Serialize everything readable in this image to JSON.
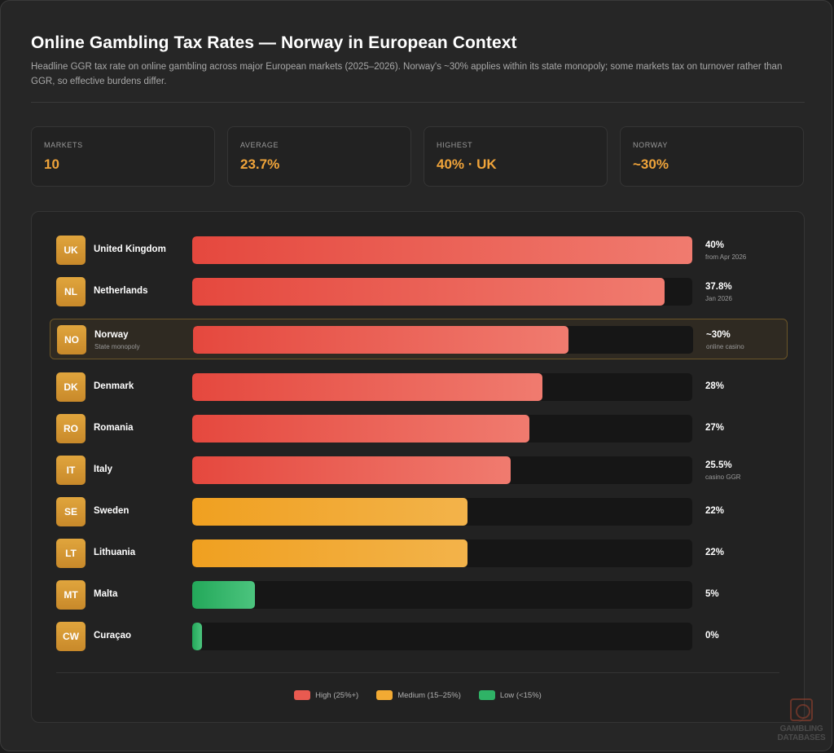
{
  "header": {
    "title": "Online Gambling Tax Rates — Norway in European Context",
    "subtitle": "Headline GGR tax rate on online gambling across major European markets (2025–2026). Norway's ~30% applies within its state monopoly; some markets tax on turnover rather than GGR, so effective burdens differ."
  },
  "stats": [
    {
      "label": "MARKETS",
      "value": "10"
    },
    {
      "label": "AVERAGE",
      "value": "23.7%"
    },
    {
      "label": "HIGHEST",
      "value": "40% · UK"
    },
    {
      "label": "NORWAY",
      "value": "~30%"
    }
  ],
  "chart_data": {
    "type": "bar",
    "orientation": "horizontal",
    "xlim": [
      0,
      40
    ],
    "grid": false,
    "categories": [
      "United Kingdom",
      "Netherlands",
      "Norway",
      "Denmark",
      "Romania",
      "Italy",
      "Sweden",
      "Lithuania",
      "Malta",
      "Curaçao"
    ],
    "values": [
      40,
      37.8,
      30,
      28,
      27,
      25.5,
      22,
      22,
      5,
      0
    ],
    "rows": [
      {
        "code": "UK",
        "name": "United Kingdom",
        "subnote": "",
        "value": 40,
        "label": "40%",
        "note": "from Apr 2026",
        "tier": "high",
        "highlight": false
      },
      {
        "code": "NL",
        "name": "Netherlands",
        "subnote": "",
        "value": 37.8,
        "label": "37.8%",
        "note": "Jan 2026",
        "tier": "high",
        "highlight": false
      },
      {
        "code": "NO",
        "name": "Norway",
        "subnote": "State monopoly",
        "value": 30,
        "label": "~30%",
        "note": "online casino",
        "tier": "high",
        "highlight": true
      },
      {
        "code": "DK",
        "name": "Denmark",
        "subnote": "",
        "value": 28,
        "label": "28%",
        "note": "",
        "tier": "high",
        "highlight": false
      },
      {
        "code": "RO",
        "name": "Romania",
        "subnote": "",
        "value": 27,
        "label": "27%",
        "note": "",
        "tier": "high",
        "highlight": false
      },
      {
        "code": "IT",
        "name": "Italy",
        "subnote": "",
        "value": 25.5,
        "label": "25.5%",
        "note": "casino GGR",
        "tier": "high",
        "highlight": false
      },
      {
        "code": "SE",
        "name": "Sweden",
        "subnote": "",
        "value": 22,
        "label": "22%",
        "note": "",
        "tier": "medium",
        "highlight": false
      },
      {
        "code": "LT",
        "name": "Lithuania",
        "subnote": "",
        "value": 22,
        "label": "22%",
        "note": "",
        "tier": "medium",
        "highlight": false
      },
      {
        "code": "MT",
        "name": "Malta",
        "subnote": "",
        "value": 5,
        "label": "5%",
        "note": "",
        "tier": "low",
        "highlight": false
      },
      {
        "code": "CW",
        "name": "Curaçao",
        "subnote": "",
        "value": 0,
        "label": "0%",
        "note": "",
        "tier": "low",
        "highlight": false
      }
    ],
    "legend": {
      "placement": "bottom-center",
      "items": [
        {
          "tier": "high",
          "label": "High (25%+)",
          "color": "#e95a50"
        },
        {
          "tier": "medium",
          "label": "Medium (15–25%)",
          "color": "#f2aa33"
        },
        {
          "tier": "low",
          "label": "Low (<15%)",
          "color": "#2fb366"
        }
      ]
    }
  },
  "watermark": {
    "icon": "roulette-icon",
    "line1": "GAMBLING",
    "line2": "DATABASES"
  }
}
